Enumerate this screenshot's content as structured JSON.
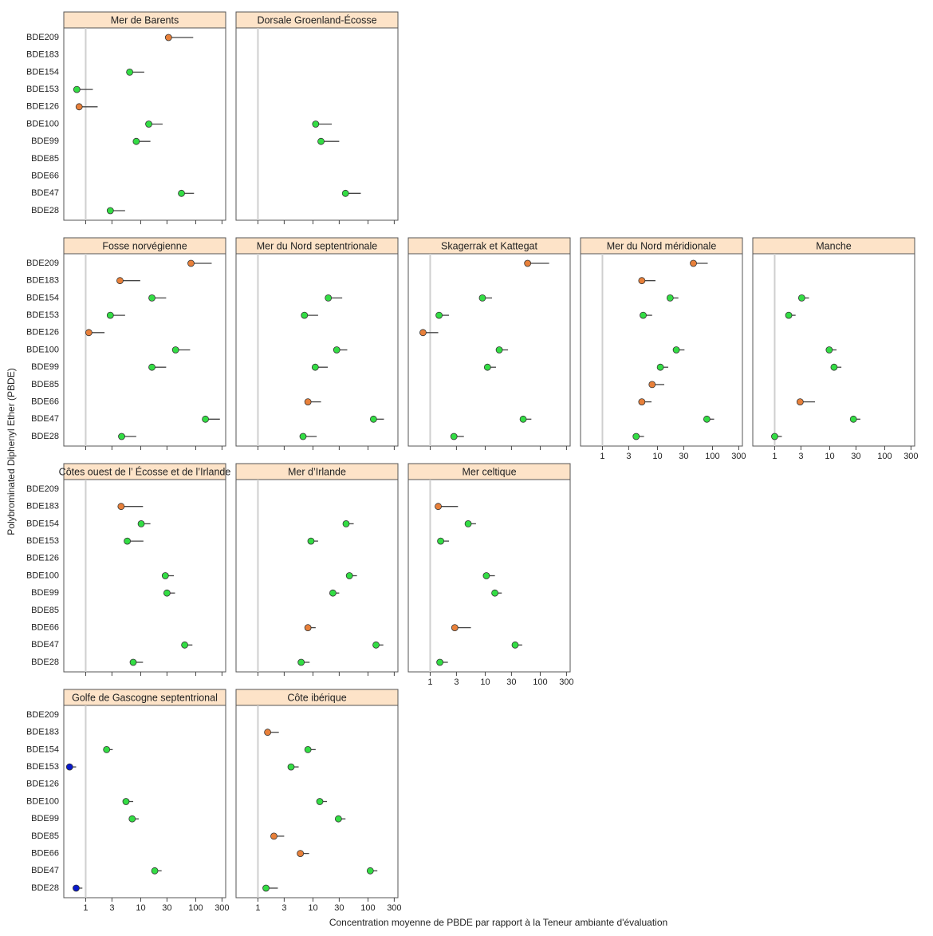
{
  "chart_data": {
    "type": "trellis",
    "y_label": "Polybrominated Diphenyl Ether (PBDE)",
    "x_label": "Concentration moyenne de PBDE par rapport à la Teneur ambiante d'évaluation",
    "categories": [
      "BDE209",
      "BDE183",
      "BDE154",
      "BDE153",
      "BDE126",
      "BDE100",
      "BDE99",
      "BDE85",
      "BDE66",
      "BDE47",
      "BDE28"
    ],
    "log_x": true,
    "xlim": [
      0.4,
      350
    ],
    "xticks": [
      1,
      3,
      10,
      30,
      100,
      300
    ],
    "reference": 1,
    "panels": [
      {
        "type": "dot",
        "title": "Mer de Barents",
        "values": [
          32,
          null,
          6.3,
          0.69,
          0.76,
          14,
          8.3,
          null,
          null,
          55,
          2.8
        ],
        "upper": [
          90,
          null,
          11.6,
          1.35,
          1.65,
          25,
          15,
          null,
          null,
          93,
          5.2
        ],
        "colors": [
          "#e8803a",
          null,
          "#33dd44",
          "#33dd44",
          "#e8803a",
          "#33dd44",
          "#33dd44",
          null,
          null,
          "#33dd44",
          "#33dd44"
        ]
      },
      {
        "type": "dot",
        "title": "Dorsale Groenland-Écosse",
        "values": [
          null,
          null,
          null,
          null,
          null,
          11.2,
          14,
          null,
          null,
          39,
          null
        ],
        "upper": [
          null,
          null,
          null,
          null,
          null,
          22,
          30,
          null,
          null,
          74,
          null
        ],
        "colors": [
          null,
          null,
          null,
          null,
          null,
          "#33dd44",
          "#33dd44",
          null,
          null,
          "#33dd44",
          null
        ]
      },
      {
        "type": "dot",
        "title": "Fosse norvégienne",
        "values": [
          82,
          4.2,
          16,
          2.8,
          1.14,
          43,
          16,
          null,
          null,
          150,
          4.5
        ],
        "upper": [
          195,
          9.8,
          29,
          5.2,
          2.2,
          79,
          29,
          null,
          null,
          275,
          8.3
        ],
        "colors": [
          "#e8803a",
          "#e8803a",
          "#33dd44",
          "#33dd44",
          "#e8803a",
          "#33dd44",
          "#33dd44",
          null,
          null,
          "#33dd44",
          "#33dd44"
        ]
      },
      {
        "type": "dot",
        "title": "Mer du Nord septentrionale",
        "values": [
          null,
          null,
          19,
          7.0,
          null,
          27,
          11,
          null,
          8.1,
          126,
          6.6
        ],
        "upper": [
          null,
          null,
          34,
          12.4,
          null,
          42,
          18.6,
          null,
          14,
          195,
          11.7
        ],
        "colors": [
          null,
          null,
          "#33dd44",
          "#33dd44",
          null,
          "#33dd44",
          "#33dd44",
          null,
          "#e8803a",
          "#33dd44",
          "#33dd44"
        ]
      },
      {
        "type": "dot",
        "title": "Skagerrak et Kattegat",
        "values": [
          59,
          null,
          8.9,
          1.45,
          0.74,
          18,
          11,
          null,
          null,
          49,
          2.7
        ],
        "upper": [
          145,
          null,
          13.3,
          2.2,
          1.4,
          26,
          15.7,
          null,
          null,
          69,
          4.1
        ],
        "colors": [
          "#e8803a",
          null,
          "#33dd44",
          "#33dd44",
          "#e8803a",
          "#33dd44",
          "#33dd44",
          null,
          null,
          "#33dd44",
          "#33dd44"
        ]
      },
      {
        "type": "dot",
        "title": "Mer du Nord méridionale",
        "values": [
          45,
          5.2,
          17,
          5.5,
          null,
          22,
          11.3,
          8.0,
          5.2,
          79,
          4.1
        ],
        "upper": [
          82,
          9.2,
          24,
          8.0,
          null,
          31,
          15.7,
          13.3,
          7.8,
          107,
          5.7
        ],
        "colors": [
          "#e8803a",
          "#e8803a",
          "#33dd44",
          "#33dd44",
          null,
          "#33dd44",
          "#33dd44",
          "#e8803a",
          "#e8803a",
          "#33dd44",
          "#33dd44"
        ]
      },
      {
        "type": "dot",
        "title": "Manche",
        "values": [
          null,
          null,
          3.1,
          1.8,
          null,
          9.8,
          12,
          null,
          2.9,
          27,
          1.0
        ],
        "upper": [
          null,
          null,
          4.2,
          2.4,
          null,
          13.3,
          16.3,
          null,
          5.4,
          36,
          1.35
        ],
        "colors": [
          null,
          null,
          "#33dd44",
          "#33dd44",
          null,
          "#33dd44",
          "#33dd44",
          null,
          "#e8803a",
          "#33dd44",
          "#33dd44"
        ]
      },
      {
        "type": "dot",
        "title": "Côtes ouest de l’ Écosse et de l’Irlande",
        "values": [
          null,
          4.4,
          10.2,
          5.7,
          null,
          28,
          30,
          null,
          null,
          63,
          7.3
        ],
        "upper": [
          null,
          11,
          15,
          11.2,
          null,
          40,
          42,
          null,
          null,
          87,
          11
        ],
        "colors": [
          null,
          "#e8803a",
          "#33dd44",
          "#33dd44",
          null,
          "#33dd44",
          "#33dd44",
          null,
          null,
          "#33dd44",
          "#33dd44"
        ]
      },
      {
        "type": "dot",
        "title": "Mer d’Irlande",
        "values": [
          null,
          null,
          40,
          9.2,
          null,
          46,
          23,
          null,
          8.1,
          140,
          6.1
        ],
        "upper": [
          null,
          null,
          55,
          12.4,
          null,
          63,
          30,
          null,
          11.2,
          190,
          8.7
        ],
        "colors": [
          null,
          null,
          "#33dd44",
          "#33dd44",
          null,
          "#33dd44",
          "#33dd44",
          null,
          "#e8803a",
          "#33dd44",
          "#33dd44"
        ]
      },
      {
        "type": "dot",
        "title": "Mer celtique",
        "values": [
          null,
          1.4,
          4.9,
          1.55,
          null,
          10.5,
          15,
          null,
          2.8,
          35,
          1.5
        ],
        "upper": [
          null,
          3.2,
          6.8,
          2.2,
          null,
          15,
          20,
          null,
          5.5,
          47,
          2.1
        ],
        "colors": [
          null,
          "#e8803a",
          "#33dd44",
          "#33dd44",
          null,
          "#33dd44",
          "#33dd44",
          null,
          "#e8803a",
          "#33dd44",
          "#33dd44"
        ]
      },
      {
        "type": "dot",
        "title": "Golfe de Gascogne septentrional",
        "values": [
          null,
          null,
          2.4,
          0.51,
          null,
          5.4,
          7.0,
          null,
          null,
          18,
          0.67
        ],
        "upper": [
          null,
          null,
          3.1,
          0.67,
          null,
          7.3,
          9.2,
          null,
          null,
          24,
          0.87
        ],
        "colors": [
          null,
          null,
          "#33dd44",
          "#0a1acc",
          null,
          "#33dd44",
          "#33dd44",
          null,
          null,
          "#33dd44",
          "#0a1acc"
        ]
      },
      {
        "type": "dot",
        "title": "Côte ibérique",
        "values": [
          null,
          1.5,
          8.1,
          4.0,
          null,
          13.3,
          29,
          1.95,
          5.9,
          110,
          1.4
        ],
        "upper": [
          null,
          2.4,
          11.2,
          5.5,
          null,
          18,
          39,
          3.0,
          8.5,
          148,
          2.3
        ],
        "colors": [
          null,
          "#e8803a",
          "#33dd44",
          "#33dd44",
          null,
          "#33dd44",
          "#33dd44",
          "#e8803a",
          "#e8803a",
          "#33dd44",
          "#33dd44"
        ]
      }
    ]
  }
}
